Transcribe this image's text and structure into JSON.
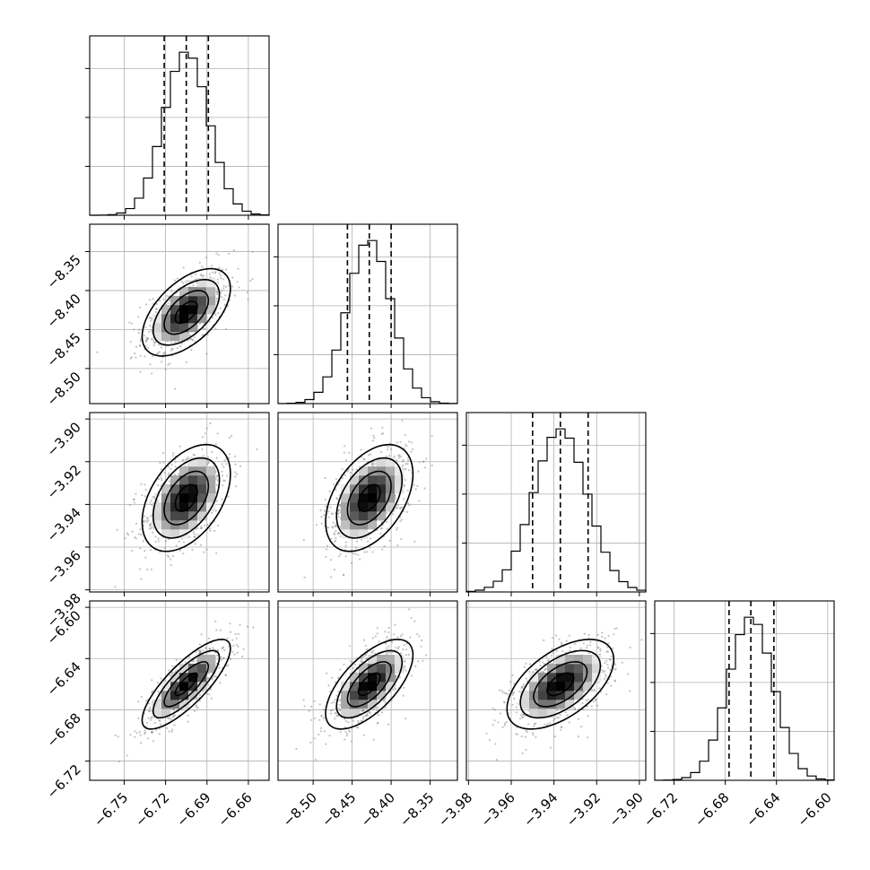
{
  "chart_data": {
    "type": "corner",
    "dimensions": 4,
    "grid": true,
    "parameters": [
      {
        "index": 0,
        "range": [
          -6.775,
          -6.645
        ],
        "ticks": [
          -6.75,
          -6.72,
          -6.69,
          -6.66
        ],
        "tick_labels": [
          "−6.75",
          "−6.72",
          "−6.69",
          "−6.66"
        ],
        "mean": -6.705,
        "sigma": 0.016,
        "quantiles": [
          -6.721,
          -6.705,
          -6.689
        ]
      },
      {
        "index": 1,
        "range": [
          -8.545,
          -8.315
        ],
        "ticks": [
          -8.5,
          -8.45,
          -8.4,
          -8.35
        ],
        "tick_labels": [
          "−8.50",
          "−8.45",
          "−8.40",
          "−8.35"
        ],
        "mean": -8.428,
        "sigma": 0.028,
        "quantiles": [
          -8.456,
          -8.428,
          -8.4
        ]
      },
      {
        "index": 2,
        "range": [
          -3.981,
          -3.897
        ],
        "ticks": [
          -3.98,
          -3.96,
          -3.94,
          -3.92,
          -3.9
        ],
        "tick_labels": [
          "−3.98",
          "−3.96",
          "−3.94",
          "−3.92",
          "−3.90"
        ],
        "mean": -3.937,
        "sigma": 0.0125,
        "quantiles": [
          -3.95,
          -3.937,
          -3.924
        ]
      },
      {
        "index": 3,
        "range": [
          -6.735,
          -6.595
        ],
        "ticks": [
          -6.72,
          -6.68,
          -6.64,
          -6.6
        ],
        "tick_labels": [
          "−6.72",
          "−6.68",
          "−6.64",
          "−6.60"
        ],
        "y_tick_labels": [
          "−6.60",
          "−6.64",
          "−6.68",
          "−6.72"
        ],
        "mean": -6.66,
        "sigma": 0.0175,
        "quantiles": [
          -6.677,
          -6.66,
          -6.642
        ]
      }
    ],
    "correlations": {
      "1-0": 0.55,
      "2-0": 0.45,
      "2-1": 0.45,
      "3-0": 0.8,
      "3-1": 0.65,
      "3-2": 0.55
    },
    "histogram_bins": 20,
    "contour_levels_sigma": [
      0.5,
      1.0,
      1.5,
      2.0
    ]
  }
}
